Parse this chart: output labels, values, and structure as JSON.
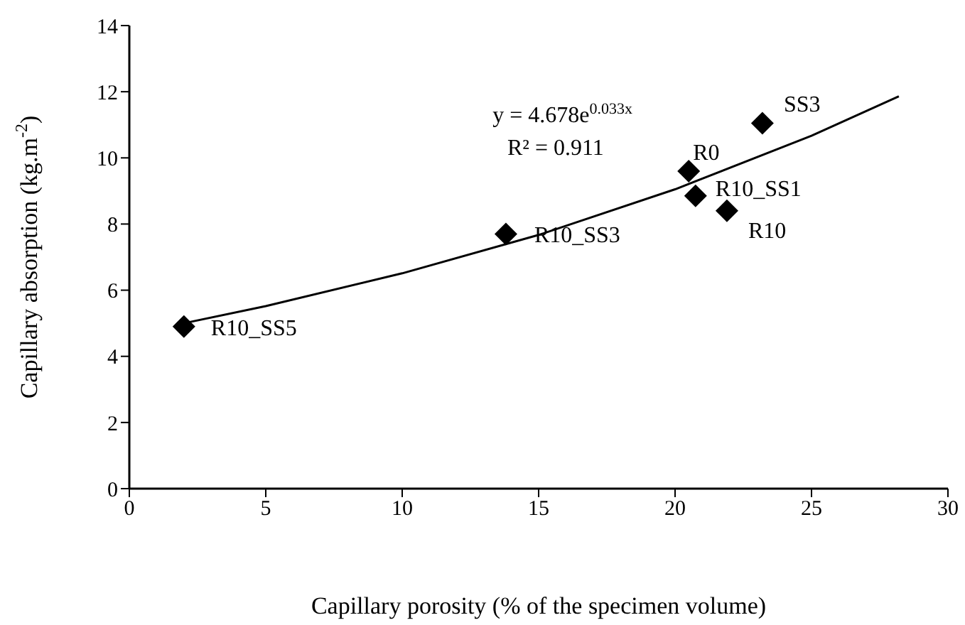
{
  "chart_data": {
    "type": "scatter",
    "xlabel": "Capillary porosity (% of the specimen volume)",
    "ylabel": "Capillary absorption (kg.m$^{-2}$)",
    "xlim": [
      0,
      30
    ],
    "xticks": [
      0,
      5,
      10,
      15,
      20,
      25,
      30
    ],
    "ylim": [
      0,
      14
    ],
    "yticks": [
      0,
      2,
      4,
      6,
      8,
      10,
      12,
      14
    ],
    "marker": "diamond",
    "series": [
      {
        "color": "#000000",
        "x": [
          2.0,
          13.8,
          20.5,
          20.75,
          21.9,
          23.2
        ],
        "values": [
          4.9,
          7.7,
          9.6,
          8.85,
          8.4,
          11.05
        ]
      },
      {
        "type": "line",
        "marker": "none",
        "color": "#000000",
        "x": [
          2,
          5,
          10,
          15,
          20,
          25,
          28.2
        ],
        "values": [
          5.0,
          5.52,
          6.51,
          7.67,
          9.05,
          10.67,
          11.86
        ]
      }
    ],
    "annotations": [
      "y = 4.678e$^{0.033x}$",
      "R² = 0.911",
      {
        "text": "R10_SS5",
        "x": 2.0,
        "y": 4.9
      },
      {
        "text": "R10_SS3",
        "x": 13.8,
        "y": 7.7
      },
      {
        "text": "R0",
        "x": 20.5,
        "y": 9.6
      },
      {
        "text": "R10_SS1",
        "x": 20.75,
        "y": 8.85
      },
      {
        "text": "R10",
        "x": 21.9,
        "y": 8.4
      },
      {
        "text": "SS3",
        "x": 23.2,
        "y": 11.05
      }
    ]
  }
}
